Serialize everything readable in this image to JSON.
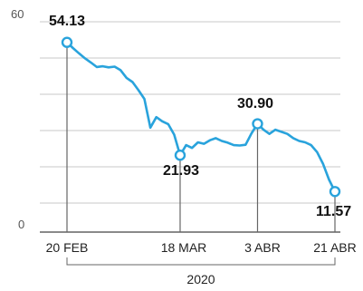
{
  "chart_data": {
    "type": "line",
    "title": "",
    "xlabel": "",
    "ylabel": "",
    "ylim": [
      0,
      60
    ],
    "yticks": [
      0,
      60
    ],
    "x_tick_labels": [
      "20 FEB",
      "18 MAR",
      "3 ABR",
      "21 ABR"
    ],
    "year_label": "2020",
    "grid": true,
    "series_color": "#29a3dc",
    "series": [
      {
        "values": [
          54.13,
          52.5,
          51.0,
          49.6,
          48.4,
          47.1,
          47.3,
          47.0,
          47.2,
          46.2,
          44.0,
          42.8,
          40.5,
          38.0,
          29.8,
          32.8,
          31.6,
          30.8,
          27.8,
          21.93,
          24.8,
          24.0,
          25.6,
          25.2,
          26.2,
          26.8,
          26.0,
          25.5,
          24.8,
          24.7,
          24.9,
          28.2,
          30.9,
          29.2,
          28.0,
          29.2,
          28.6,
          28.0,
          26.8,
          26.0,
          25.6,
          24.8,
          22.8,
          19.5,
          15.0,
          11.57
        ]
      }
    ],
    "highlights": [
      {
        "index": 0,
        "value": "54.13"
      },
      {
        "index": 19,
        "value": "21.93"
      },
      {
        "index": 32,
        "value": "30.90"
      },
      {
        "index": 45,
        "value": "11.57"
      }
    ]
  }
}
